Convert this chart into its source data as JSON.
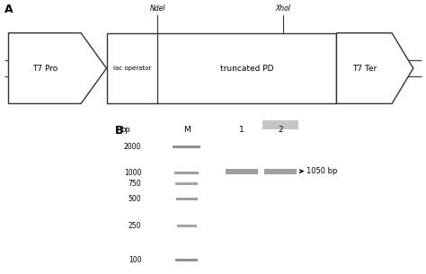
{
  "fig_width": 4.74,
  "fig_height": 3.05,
  "bg_color": "#ffffff",
  "t7pro_text": "T7 Pro",
  "lac_text": "lac operator",
  "truncpd_text": "truncated PD",
  "t7ter_text": "T7 Ter",
  "ndei_text": "NdeI",
  "xhoi_text": "XhoI",
  "ladder_bps": [
    2000,
    1000,
    750,
    500,
    250,
    100
  ],
  "annotation_text": "1050 bp",
  "gel_bg": "#000000",
  "band_color_ladder": "#787878",
  "band_color_lane": "#909090",
  "band_color_blob": "#c0c0c0"
}
